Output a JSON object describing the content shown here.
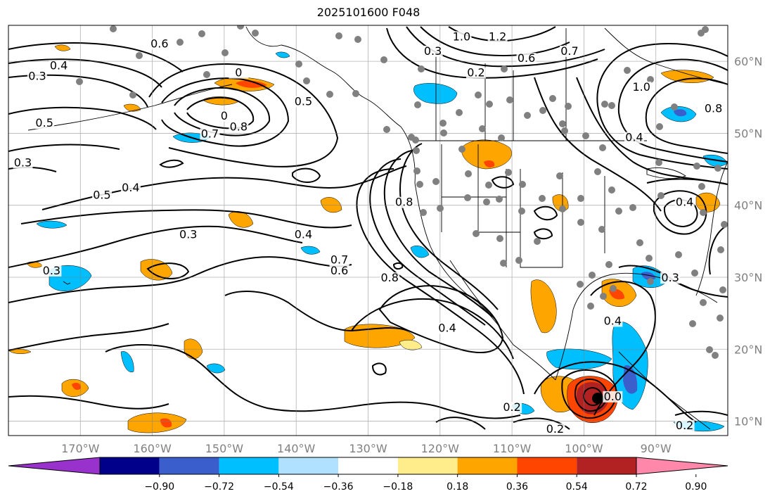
{
  "title": "2025101600 F048",
  "map": {
    "lon_range": [
      -180,
      -80
    ],
    "lat_range": [
      8,
      65
    ],
    "lon_ticks": [
      {
        "value": -170,
        "label": "170°W"
      },
      {
        "value": -160,
        "label": "160°W"
      },
      {
        "value": -150,
        "label": "150°W"
      },
      {
        "value": -140,
        "label": "140°W"
      },
      {
        "value": -130,
        "label": "130°W"
      },
      {
        "value": -120,
        "label": "120°W"
      },
      {
        "value": -110,
        "label": "110°W"
      },
      {
        "value": -100,
        "label": "100°W"
      },
      {
        "value": -90,
        "label": "90°W"
      }
    ],
    "lat_ticks": [
      {
        "value": 10,
        "label": "10°N"
      },
      {
        "value": 20,
        "label": "20°N"
      },
      {
        "value": 30,
        "label": "30°N"
      },
      {
        "value": 40,
        "label": "40°N"
      },
      {
        "value": 50,
        "label": "50°N"
      },
      {
        "value": 60,
        "label": "60°N"
      }
    ],
    "gridlines": true,
    "contour_labels": [
      {
        "text": "0.6",
        "lon": -159,
        "lat": 62
      },
      {
        "text": "0.4",
        "lon": -173,
        "lat": 59
      },
      {
        "text": "0.3",
        "lon": -176,
        "lat": 57.5
      },
      {
        "text": "0.5",
        "lon": -175,
        "lat": 51
      },
      {
        "text": "0.3",
        "lon": -178,
        "lat": 45.5
      },
      {
        "text": "0",
        "lon": -148,
        "lat": 58
      },
      {
        "text": "0.5",
        "lon": -139,
        "lat": 54
      },
      {
        "text": "0",
        "lon": -150,
        "lat": 52
      },
      {
        "text": "0.7",
        "lon": -152,
        "lat": 49.5
      },
      {
        "text": "0.8",
        "lon": -148,
        "lat": 50.5
      },
      {
        "text": "0.4",
        "lon": -163,
        "lat": 42
      },
      {
        "text": "0.5",
        "lon": -167,
        "lat": 41
      },
      {
        "text": "0.3",
        "lon": -155,
        "lat": 35.5
      },
      {
        "text": "0.4",
        "lon": -139,
        "lat": 35.5
      },
      {
        "text": "0.3",
        "lon": -174,
        "lat": 30.5
      },
      {
        "text": "0.7",
        "lon": -134,
        "lat": 32
      },
      {
        "text": "0.6",
        "lon": -134,
        "lat": 30.5
      },
      {
        "text": "0.8",
        "lon": -127,
        "lat": 29.5
      },
      {
        "text": "0.8",
        "lon": -125,
        "lat": 40
      },
      {
        "text": "0.4",
        "lon": -119,
        "lat": 22.5
      },
      {
        "text": "1.0",
        "lon": -117,
        "lat": 63
      },
      {
        "text": "1.2",
        "lon": -112,
        "lat": 63
      },
      {
        "text": "0.3",
        "lon": -121,
        "lat": 61
      },
      {
        "text": "0.2",
        "lon": -115,
        "lat": 58
      },
      {
        "text": "0.6",
        "lon": -108,
        "lat": 60
      },
      {
        "text": "0.7",
        "lon": -102,
        "lat": 61
      },
      {
        "text": "1.0",
        "lon": -92,
        "lat": 56
      },
      {
        "text": "0.8",
        "lon": -82,
        "lat": 53
      },
      {
        "text": "0.4",
        "lon": -93,
        "lat": 49
      },
      {
        "text": "0.4",
        "lon": -86,
        "lat": 40
      },
      {
        "text": "0.3",
        "lon": -88,
        "lat": 29.5
      },
      {
        "text": "0.4",
        "lon": -96,
        "lat": 23.5
      },
      {
        "text": "0.2",
        "lon": -110,
        "lat": 11.5
      },
      {
        "text": "0.2",
        "lon": -104,
        "lat": 8.5
      },
      {
        "text": "0.0",
        "lon": -96,
        "lat": 13
      },
      {
        "text": "0.2",
        "lon": -86,
        "lat": 9
      }
    ]
  },
  "colorbar": {
    "colors": [
      "#9932CC",
      "#00008B",
      "#3A5FCD",
      "#00BFFF",
      "#B0E2FF",
      "#FFFFFF",
      "#FFEC8B",
      "#FFA500",
      "#FF4500",
      "#B22222",
      "#FF88AA"
    ],
    "tick_labels": [
      "−0.90",
      "−0.72",
      "−0.54",
      "−0.36",
      "−0.18",
      "0.18",
      "0.36",
      "0.54",
      "0.72",
      "0.90"
    ]
  }
}
